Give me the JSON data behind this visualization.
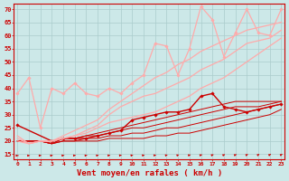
{
  "bg_color": "#cce8e8",
  "grid_color": "#aacccc",
  "xlabel": "Vent moyen/en rafales ( km/h )",
  "xlabel_color": "#cc0000",
  "xlabel_fontsize": 6.5,
  "xticks": [
    0,
    1,
    2,
    3,
    4,
    5,
    6,
    7,
    8,
    9,
    10,
    11,
    12,
    13,
    14,
    15,
    16,
    17,
    18,
    19,
    20,
    21,
    22,
    23
  ],
  "yticks": [
    15,
    20,
    25,
    30,
    35,
    40,
    45,
    50,
    55,
    60,
    65,
    70
  ],
  "ylim": [
    13,
    72
  ],
  "xlim": [
    -0.3,
    23.3
  ],
  "lines": [
    {
      "x": [
        0,
        1,
        2,
        3,
        4,
        5,
        6,
        7,
        8,
        9,
        10,
        11,
        12,
        13,
        14,
        15,
        16,
        17,
        18,
        19,
        20,
        21,
        22,
        23
      ],
      "y": [
        20,
        20,
        20,
        19,
        20,
        20,
        20,
        20,
        21,
        21,
        21,
        21,
        22,
        22,
        23,
        23,
        24,
        25,
        26,
        27,
        28,
        29,
        30,
        32
      ],
      "color": "#cc0000",
      "lw": 0.7,
      "marker": null,
      "ls": "-"
    },
    {
      "x": [
        0,
        1,
        2,
        3,
        4,
        5,
        6,
        7,
        8,
        9,
        10,
        11,
        12,
        13,
        14,
        15,
        16,
        17,
        18,
        19,
        20,
        21,
        22,
        23
      ],
      "y": [
        20,
        20,
        20,
        19,
        20,
        20,
        21,
        21,
        22,
        22,
        23,
        23,
        24,
        25,
        25,
        26,
        27,
        28,
        29,
        30,
        31,
        32,
        33,
        34
      ],
      "color": "#cc0000",
      "lw": 0.7,
      "marker": null,
      "ls": "-"
    },
    {
      "x": [
        0,
        1,
        2,
        3,
        4,
        5,
        6,
        7,
        8,
        9,
        10,
        11,
        12,
        13,
        14,
        15,
        16,
        17,
        18,
        19,
        20,
        21,
        22,
        23
      ],
      "y": [
        20,
        20,
        20,
        19,
        21,
        21,
        22,
        22,
        23,
        24,
        25,
        25,
        26,
        27,
        28,
        29,
        30,
        31,
        32,
        33,
        33,
        33,
        34,
        35
      ],
      "color": "#cc0000",
      "lw": 0.7,
      "marker": null,
      "ls": "-"
    },
    {
      "x": [
        0,
        1,
        2,
        3,
        4,
        5,
        6,
        7,
        8,
        9,
        10,
        11,
        12,
        13,
        14,
        15,
        16,
        17,
        18,
        19,
        20,
        21,
        22,
        23
      ],
      "y": [
        20,
        20,
        20,
        19,
        21,
        21,
        22,
        23,
        24,
        25,
        26,
        27,
        28,
        29,
        30,
        31,
        32,
        33,
        34,
        35,
        35,
        35,
        35,
        35
      ],
      "color": "#cc0000",
      "lw": 0.7,
      "marker": null,
      "ls": "-"
    },
    {
      "x": [
        0,
        3,
        4,
        5,
        6,
        7,
        8,
        9,
        10,
        11,
        12,
        13,
        14,
        15,
        16,
        17,
        18,
        19,
        20,
        21,
        22,
        23
      ],
      "y": [
        26,
        20,
        21,
        21,
        21,
        22,
        23,
        24,
        28,
        29,
        30,
        31,
        31,
        32,
        37,
        38,
        33,
        32,
        31,
        32,
        33,
        34
      ],
      "color": "#cc0000",
      "lw": 1.0,
      "marker": "D",
      "ms": 1.8,
      "ls": "-"
    },
    {
      "x": [
        0,
        1,
        2,
        3,
        4,
        5,
        6,
        7,
        8,
        9,
        10,
        11,
        12,
        13,
        14,
        15,
        16,
        17,
        18,
        19,
        20,
        21,
        22,
        23
      ],
      "y": [
        38,
        44,
        25,
        40,
        38,
        42,
        38,
        37,
        40,
        38,
        42,
        45,
        57,
        56,
        45,
        55,
        71,
        66,
        52,
        61,
        70,
        61,
        60,
        70
      ],
      "color": "#ffaaaa",
      "lw": 0.9,
      "marker": "D",
      "ms": 1.8,
      "ls": "-"
    },
    {
      "x": [
        0,
        1,
        2,
        3,
        4,
        5,
        6,
        7,
        8,
        9,
        10,
        11,
        12,
        13,
        14,
        15,
        16,
        17,
        18,
        19,
        20,
        21,
        22,
        23
      ],
      "y": [
        22,
        19,
        20,
        20,
        22,
        24,
        26,
        28,
        32,
        35,
        38,
        41,
        44,
        46,
        49,
        51,
        54,
        56,
        58,
        60,
        62,
        63,
        64,
        65
      ],
      "color": "#ffaaaa",
      "lw": 0.9,
      "marker": null,
      "ls": "-"
    },
    {
      "x": [
        0,
        1,
        2,
        3,
        4,
        5,
        6,
        7,
        8,
        9,
        10,
        11,
        12,
        13,
        14,
        15,
        16,
        17,
        18,
        19,
        20,
        21,
        22,
        23
      ],
      "y": [
        21,
        19,
        20,
        20,
        21,
        22,
        24,
        26,
        30,
        33,
        35,
        37,
        38,
        40,
        42,
        44,
        47,
        49,
        51,
        54,
        57,
        58,
        59,
        62
      ],
      "color": "#ffaaaa",
      "lw": 0.9,
      "marker": null,
      "ls": "-"
    },
    {
      "x": [
        0,
        1,
        2,
        3,
        4,
        5,
        6,
        7,
        8,
        9,
        10,
        11,
        12,
        13,
        14,
        15,
        16,
        17,
        18,
        19,
        20,
        21,
        22,
        23
      ],
      "y": [
        20,
        19,
        20,
        20,
        21,
        22,
        23,
        25,
        27,
        28,
        29,
        30,
        31,
        33,
        35,
        37,
        40,
        42,
        44,
        47,
        50,
        53,
        56,
        59
      ],
      "color": "#ffaaaa",
      "lw": 0.9,
      "marker": null,
      "ls": "-"
    }
  ]
}
